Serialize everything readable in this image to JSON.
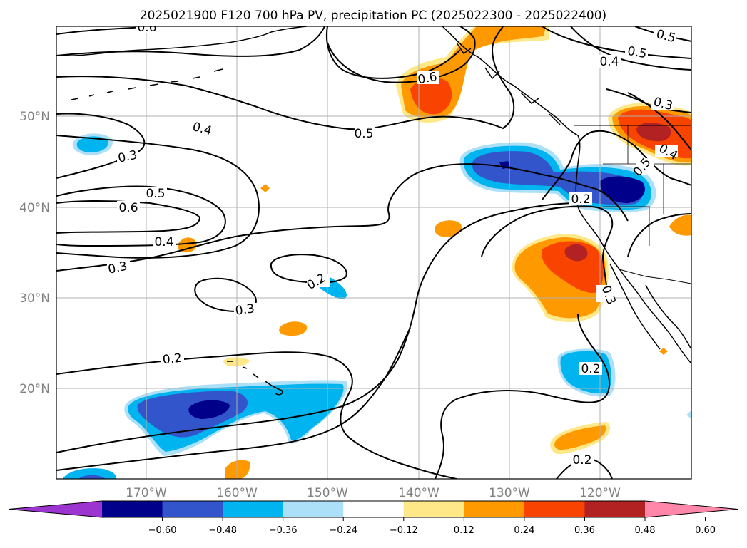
{
  "title": "2025021900 F120 700 hPa PV, precipitation PC (2025022300 - 2025022400)",
  "chart_data": {
    "type": "contour-map",
    "x_ticks": [
      "170°W",
      "160°W",
      "150°W",
      "140°W",
      "130°W",
      "120°W"
    ],
    "y_ticks": [
      "50°N",
      "40°N",
      "30°N",
      "20°N"
    ],
    "colorbar": {
      "ticks": [
        "−0.60",
        "−0.48",
        "−0.36",
        "−0.24",
        "−0.12",
        "0.12",
        "0.24",
        "0.36",
        "0.48",
        "0.60"
      ],
      "colors": [
        "#9c35d0",
        "#00008a",
        "#3355cc",
        "#00b4f0",
        "#ace0f8",
        "#ffffff",
        "#ffe888",
        "#ff9900",
        "#f84400",
        "#b22222",
        "#ff88aa"
      ],
      "extend": "both"
    },
    "pv_contour_labels": [
      "0.6",
      "0.5",
      "0.4",
      "0.3",
      "0.3",
      "0.4",
      "0.5",
      "0.6",
      "0.4",
      "0.3",
      "0.5",
      "0.3",
      "0.2",
      "0.2",
      "0.6",
      "0.5",
      "0.4",
      "0.2",
      "0.2",
      "0.2",
      "0.3",
      "0.5"
    ],
    "grid": true
  },
  "colors": {
    "pos_light": "#ffe888",
    "pos_1": "#ff9900",
    "pos_2": "#f84400",
    "pos_3": "#b22222",
    "neg_light": "#ace0f8",
    "neg_1": "#00b4f0",
    "neg_2": "#3355cc",
    "neg_3": "#00008a",
    "grid": "#b0b0b0"
  }
}
